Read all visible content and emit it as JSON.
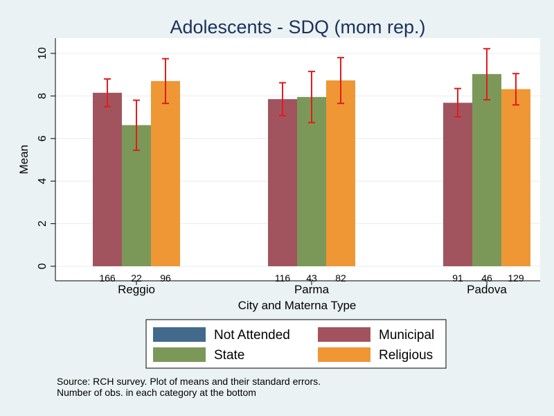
{
  "chart_data": {
    "type": "bar",
    "title": "Adolescents - SDQ (mom rep.)",
    "xlabel": "City and Materna Type",
    "ylabel": "Mean",
    "ylim": [
      0,
      10
    ],
    "yticks": [
      0,
      2,
      4,
      6,
      8,
      10
    ],
    "grid": true,
    "legend_position": "bottom",
    "legend": [
      {
        "name": "Not Attended",
        "color": "#426a8c"
      },
      {
        "name": "Municipal",
        "color": "#a2545e"
      },
      {
        "name": "State",
        "color": "#7b9858"
      },
      {
        "name": "Religious",
        "color": "#ee9734"
      }
    ],
    "categories": [
      "Reggio",
      "Parma",
      "Padova"
    ],
    "series": [
      {
        "name": "Municipal",
        "color": "#a2545e",
        "values": [
          8.15,
          7.85,
          7.68
        ],
        "err_low": [
          7.5,
          7.08,
          7.02
        ],
        "err_high": [
          8.8,
          8.62,
          8.35
        ],
        "counts": [
          "166",
          "116",
          "91"
        ]
      },
      {
        "name": "State",
        "color": "#7b9858",
        "values": [
          6.63,
          7.95,
          9.03
        ],
        "err_low": [
          5.45,
          6.75,
          7.82
        ],
        "err_high": [
          7.8,
          9.15,
          10.22
        ],
        "counts": [
          "22",
          "43",
          "46"
        ]
      },
      {
        "name": "Religious",
        "color": "#ee9734",
        "values": [
          8.7,
          8.73,
          8.32
        ],
        "err_low": [
          7.65,
          7.65,
          7.58
        ],
        "err_high": [
          9.75,
          9.8,
          9.05
        ],
        "counts": [
          "96",
          "82",
          "129"
        ]
      }
    ],
    "error_bar_color": "#e41a1c",
    "notes": [
      "Source: RCH survey. Plot of means and their standard errors.",
      "Number of obs. in each category at the bottom"
    ]
  }
}
